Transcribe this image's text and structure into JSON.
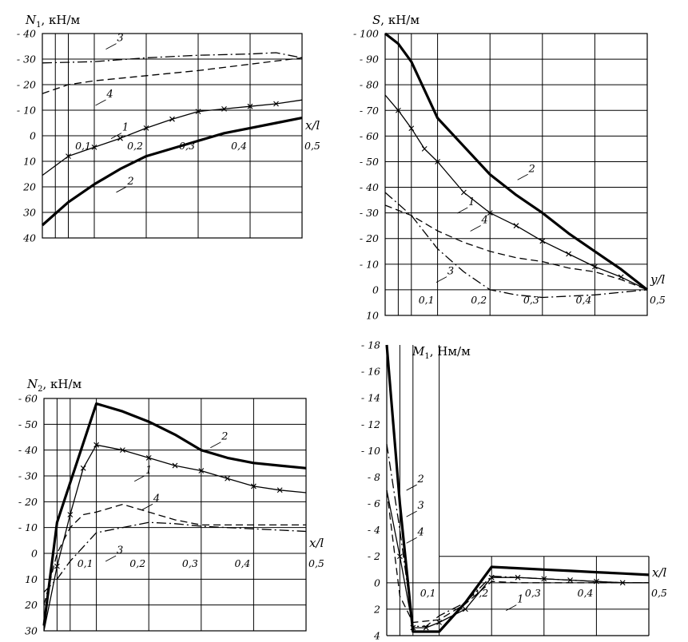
{
  "chart_data": [
    {
      "id": "n1",
      "type": "line",
      "title": "",
      "ylabel_var": "N",
      "ylabel_sub": "1",
      "ylabel_unit": ", кН/м",
      "xlabel": "x/l",
      "xlim": [
        0,
        0.5
      ],
      "ylim": [
        40,
        -40
      ],
      "y_ticks": [
        -40,
        -30,
        -20,
        -10,
        0,
        10,
        20,
        30,
        40
      ],
      "y_tick_labels": [
        "- 40",
        "- 30",
        "- 20",
        "- 10",
        "0",
        "10",
        "20",
        "30",
        "40"
      ],
      "x_tick_labels": [
        "0,1",
        "0,2",
        "0,3",
        "0,4",
        "0,5"
      ],
      "x_tick_values": [
        0.1,
        0.2,
        0.3,
        0.4,
        0.5
      ],
      "x_labels_at_y": 0,
      "grid_x": [
        0.025,
        0.05,
        0.1,
        0.2,
        0.3,
        0.4
      ],
      "grid_y": [
        -30,
        -20,
        -10,
        0,
        10,
        20,
        30
      ],
      "series": [
        {
          "name": "1",
          "style": "cross",
          "x": [
            0,
            0.05,
            0.1,
            0.15,
            0.2,
            0.25,
            0.3,
            0.35,
            0.4,
            0.45,
            0.5
          ],
          "y": [
            15.5,
            8,
            4.5,
            1,
            -3,
            -6.5,
            -9.5,
            -10.5,
            -11.5,
            -12.5,
            -14
          ]
        },
        {
          "name": "2",
          "style": "thick",
          "x": [
            0,
            0.05,
            0.1,
            0.15,
            0.2,
            0.25,
            0.3,
            0.35,
            0.4,
            0.45,
            0.5
          ],
          "y": [
            35,
            26,
            19,
            13,
            8,
            5,
            2,
            -1,
            -3,
            -5,
            -7
          ]
        },
        {
          "name": "3",
          "style": "dashdot",
          "x": [
            0,
            0.1,
            0.2,
            0.3,
            0.4,
            0.45,
            0.5
          ],
          "y": [
            -28.5,
            -29,
            -30.5,
            -31.5,
            -32,
            -32.5,
            -30.5
          ]
        },
        {
          "name": "4",
          "style": "dashed",
          "x": [
            0,
            0.05,
            0.1,
            0.2,
            0.3,
            0.4,
            0.5
          ],
          "y": [
            -16.5,
            -20,
            -21.5,
            -23.5,
            -25.5,
            -28,
            -30.5
          ]
        }
      ],
      "curve_labels": [
        {
          "text": "1",
          "x": 0.16,
          "y": -2
        },
        {
          "text": "2",
          "x": 0.17,
          "y": 19
        },
        {
          "text": "3",
          "x": 0.15,
          "y": -37
        },
        {
          "text": "4",
          "x": 0.13,
          "y": -15
        }
      ]
    },
    {
      "id": "s",
      "type": "line",
      "title": "",
      "ylabel_var": "S",
      "ylabel_sub": "",
      "ylabel_unit": ", кН/м",
      "xlabel": "y/l",
      "xlim": [
        0,
        0.5
      ],
      "ylim": [
        10,
        -100
      ],
      "y_ticks": [
        -100,
        -90,
        -80,
        -70,
        -60,
        -50,
        -40,
        -30,
        -20,
        -10,
        0,
        10
      ],
      "y_tick_labels": [
        "- 100",
        "- 90",
        "- 80",
        "- 70",
        "- 60",
        "- 50",
        "- 40",
        "- 30",
        "- 20",
        "- 10",
        "0",
        "10"
      ],
      "x_tick_labels": [
        "0,1",
        "0,2",
        "0,3",
        "0,4",
        "0,5"
      ],
      "x_tick_values": [
        0.1,
        0.2,
        0.3,
        0.4,
        0.5
      ],
      "x_labels_at_y": 0,
      "grid_x": [
        0.025,
        0.05,
        0.1,
        0.2,
        0.3,
        0.4
      ],
      "grid_y": [
        -90,
        -80,
        -70,
        -60,
        -50,
        -40,
        -30,
        -20,
        -10,
        0
      ],
      "series": [
        {
          "name": "1",
          "style": "cross",
          "x": [
            0,
            0.025,
            0.05,
            0.075,
            0.1,
            0.15,
            0.2,
            0.25,
            0.3,
            0.35,
            0.4,
            0.45,
            0.5
          ],
          "y": [
            -76,
            -70,
            -63,
            -55,
            -50,
            -38,
            -30,
            -25,
            -19,
            -14,
            -9,
            -5,
            0
          ]
        },
        {
          "name": "2",
          "style": "thick",
          "x": [
            0,
            0.025,
            0.05,
            0.1,
            0.15,
            0.2,
            0.25,
            0.3,
            0.35,
            0.4,
            0.45,
            0.5
          ],
          "y": [
            -100,
            -96,
            -89,
            -67,
            -56,
            -45,
            -37,
            -30,
            -22,
            -15,
            -8,
            0
          ]
        },
        {
          "name": "3",
          "style": "dashdot",
          "x": [
            0,
            0.05,
            0.1,
            0.15,
            0.2,
            0.25,
            0.3,
            0.35,
            0.4,
            0.45,
            0.5
          ],
          "y": [
            -38,
            -29,
            -16,
            -7,
            0,
            2,
            3,
            2.5,
            2,
            1,
            0
          ]
        },
        {
          "name": "4",
          "style": "dashed",
          "x": [
            0,
            0.05,
            0.1,
            0.15,
            0.2,
            0.25,
            0.3,
            0.35,
            0.4,
            0.45,
            0.5
          ],
          "y": [
            -33,
            -29,
            -23,
            -18.5,
            -15,
            -12.5,
            -11,
            -8.5,
            -7,
            -4,
            0
          ]
        }
      ],
      "curve_labels": [
        {
          "text": "1",
          "x": 0.165,
          "y": -33
        },
        {
          "text": "2",
          "x": 0.28,
          "y": -46
        },
        {
          "text": "3",
          "x": 0.125,
          "y": -6
        },
        {
          "text": "4",
          "x": 0.19,
          "y": -26
        }
      ]
    },
    {
      "id": "n2",
      "type": "line",
      "title": "",
      "ylabel_var": "N",
      "ylabel_sub": "2",
      "ylabel_unit": ", кН/м",
      "xlabel": "x/l",
      "xlim": [
        0,
        0.5
      ],
      "ylim": [
        30,
        -60
      ],
      "y_ticks": [
        -60,
        -50,
        -40,
        -30,
        -20,
        -10,
        0,
        10,
        20,
        30
      ],
      "y_tick_labels": [
        "- 60",
        "- 50",
        "- 40",
        "- 30",
        "- 20",
        "- 10",
        "0",
        "10",
        "20",
        "30"
      ],
      "x_tick_labels": [
        "0,1",
        "0,2",
        "0,3",
        "0,4",
        "0,5"
      ],
      "x_tick_values": [
        0.1,
        0.2,
        0.3,
        0.4,
        0.5
      ],
      "x_labels_at_y": 0,
      "grid_x": [
        0.025,
        0.05,
        0.1,
        0.2,
        0.3,
        0.4
      ],
      "grid_y": [
        -50,
        -40,
        -30,
        -20,
        -10,
        0,
        10,
        20
      ],
      "series": [
        {
          "name": "1",
          "style": "cross",
          "x": [
            0,
            0.025,
            0.05,
            0.075,
            0.1,
            0.15,
            0.2,
            0.25,
            0.3,
            0.35,
            0.4,
            0.45,
            0.5
          ],
          "y": [
            30,
            5,
            -15,
            -33,
            -42,
            -40,
            -37,
            -34,
            -32,
            -29,
            -26,
            -24.5,
            -23.5
          ]
        },
        {
          "name": "2",
          "style": "thick",
          "x": [
            0,
            0.025,
            0.1,
            0.15,
            0.2,
            0.25,
            0.3,
            0.35,
            0.4,
            0.45,
            0.5
          ],
          "y": [
            28,
            -12,
            -58,
            -55,
            -51,
            -46,
            -40,
            -37,
            -35,
            -34,
            -33
          ]
        },
        {
          "name": "3",
          "style": "dashdot",
          "x": [
            0,
            0.025,
            0.05,
            0.1,
            0.15,
            0.2,
            0.25,
            0.3,
            0.35,
            0.4,
            0.45,
            0.5
          ],
          "y": [
            15,
            10,
            3,
            -8,
            -10,
            -12,
            -11.5,
            -10.5,
            -10,
            -9.5,
            -9,
            -8.5
          ]
        },
        {
          "name": "4",
          "style": "dashed",
          "x": [
            0,
            0.025,
            0.05,
            0.075,
            0.1,
            0.15,
            0.2,
            0.25,
            0.3,
            0.35,
            0.4,
            0.45,
            0.5
          ],
          "y": [
            20,
            0,
            -10,
            -15,
            -16,
            -19,
            -16,
            -13,
            -11,
            -11,
            -11,
            -11,
            -11
          ]
        }
      ],
      "curve_labels": [
        {
          "text": "1",
          "x": 0.2,
          "y": -31
        },
        {
          "text": "2",
          "x": 0.345,
          "y": -44
        },
        {
          "text": "3",
          "x": 0.145,
          "y": 0
        },
        {
          "text": "4",
          "x": 0.215,
          "y": -20
        }
      ]
    },
    {
      "id": "m1",
      "type": "line",
      "title": "",
      "ylabel_var": "M",
      "ylabel_sub": "1",
      "ylabel_unit": ", Нм/м",
      "xlabel": "x/l",
      "xlim": [
        0,
        0.5
      ],
      "ylim": [
        4,
        -18
      ],
      "y_ticks": [
        -18,
        -16,
        -14,
        -12,
        -10,
        -8,
        -6,
        -4,
        -2,
        0,
        2,
        4
      ],
      "y_tick_labels": [
        "- 18",
        "- 16",
        "- 14",
        "- 12",
        "- 10",
        "- 8",
        "- 6",
        "- 4",
        "- 2",
        "0",
        "2",
        "4"
      ],
      "x_tick_labels": [
        "0,1",
        "0,2",
        "0,3",
        "0,4",
        "0,5"
      ],
      "x_tick_values": [
        0.1,
        0.2,
        0.3,
        0.4,
        0.5
      ],
      "x_labels_at_y": 0,
      "grid_x": [
        0.025,
        0.05,
        0.1,
        0.2,
        0.3,
        0.4
      ],
      "grid_y": [
        0,
        2
      ],
      "grid_y_partial": [
        -2
      ],
      "series": [
        {
          "name": "1",
          "style": "cross",
          "x": [
            0,
            0.025,
            0.05,
            0.075,
            0.1,
            0.15,
            0.2,
            0.25,
            0.3,
            0.35,
            0.4,
            0.45,
            0.5
          ],
          "y": [
            -7,
            -2,
            3.4,
            3.4,
            3,
            2,
            -0.4,
            -0.4,
            -0.3,
            -0.2,
            -0.1,
            0,
            0
          ]
        },
        {
          "name": "2",
          "style": "thick",
          "x": [
            0,
            0.025,
            0.05,
            0.075,
            0.1,
            0.15,
            0.2,
            0.25,
            0.3,
            0.35,
            0.4,
            0.45,
            0.5
          ],
          "y": [
            -18,
            -6,
            3.7,
            3.7,
            3.7,
            1.5,
            -1.2,
            -1.1,
            -1,
            -0.9,
            -0.8,
            -0.7,
            -0.6
          ]
        },
        {
          "name": "3",
          "style": "dashdot",
          "x": [
            0,
            0.025,
            0.05,
            0.075,
            0.1,
            0.15,
            0.2,
            0.25,
            0.3,
            0.35,
            0.4,
            0.45,
            0.5
          ],
          "y": [
            -10.5,
            -4,
            3.3,
            3.3,
            2.5,
            1.5,
            -0.5,
            -0.4,
            -0.3,
            -0.2,
            -0.1,
            0,
            0
          ]
        },
        {
          "name": "4",
          "style": "dashed",
          "x": [
            0,
            0.025,
            0.05,
            0.1,
            0.15,
            0.2,
            0.25,
            0.3,
            0.35,
            0.4,
            0.45,
            0.5
          ],
          "y": [
            -7,
            1,
            3,
            2.8,
            1.6,
            -0.1,
            0,
            0,
            0,
            0,
            0,
            0
          ]
        }
      ],
      "curve_labels": [
        {
          "text": "1",
          "x": 0.255,
          "y": 1.5
        },
        {
          "text": "2",
          "x": 0.065,
          "y": -7.6
        },
        {
          "text": "3",
          "x": 0.065,
          "y": -5.6
        },
        {
          "text": "4",
          "x": 0.065,
          "y": -3.6
        }
      ]
    }
  ]
}
